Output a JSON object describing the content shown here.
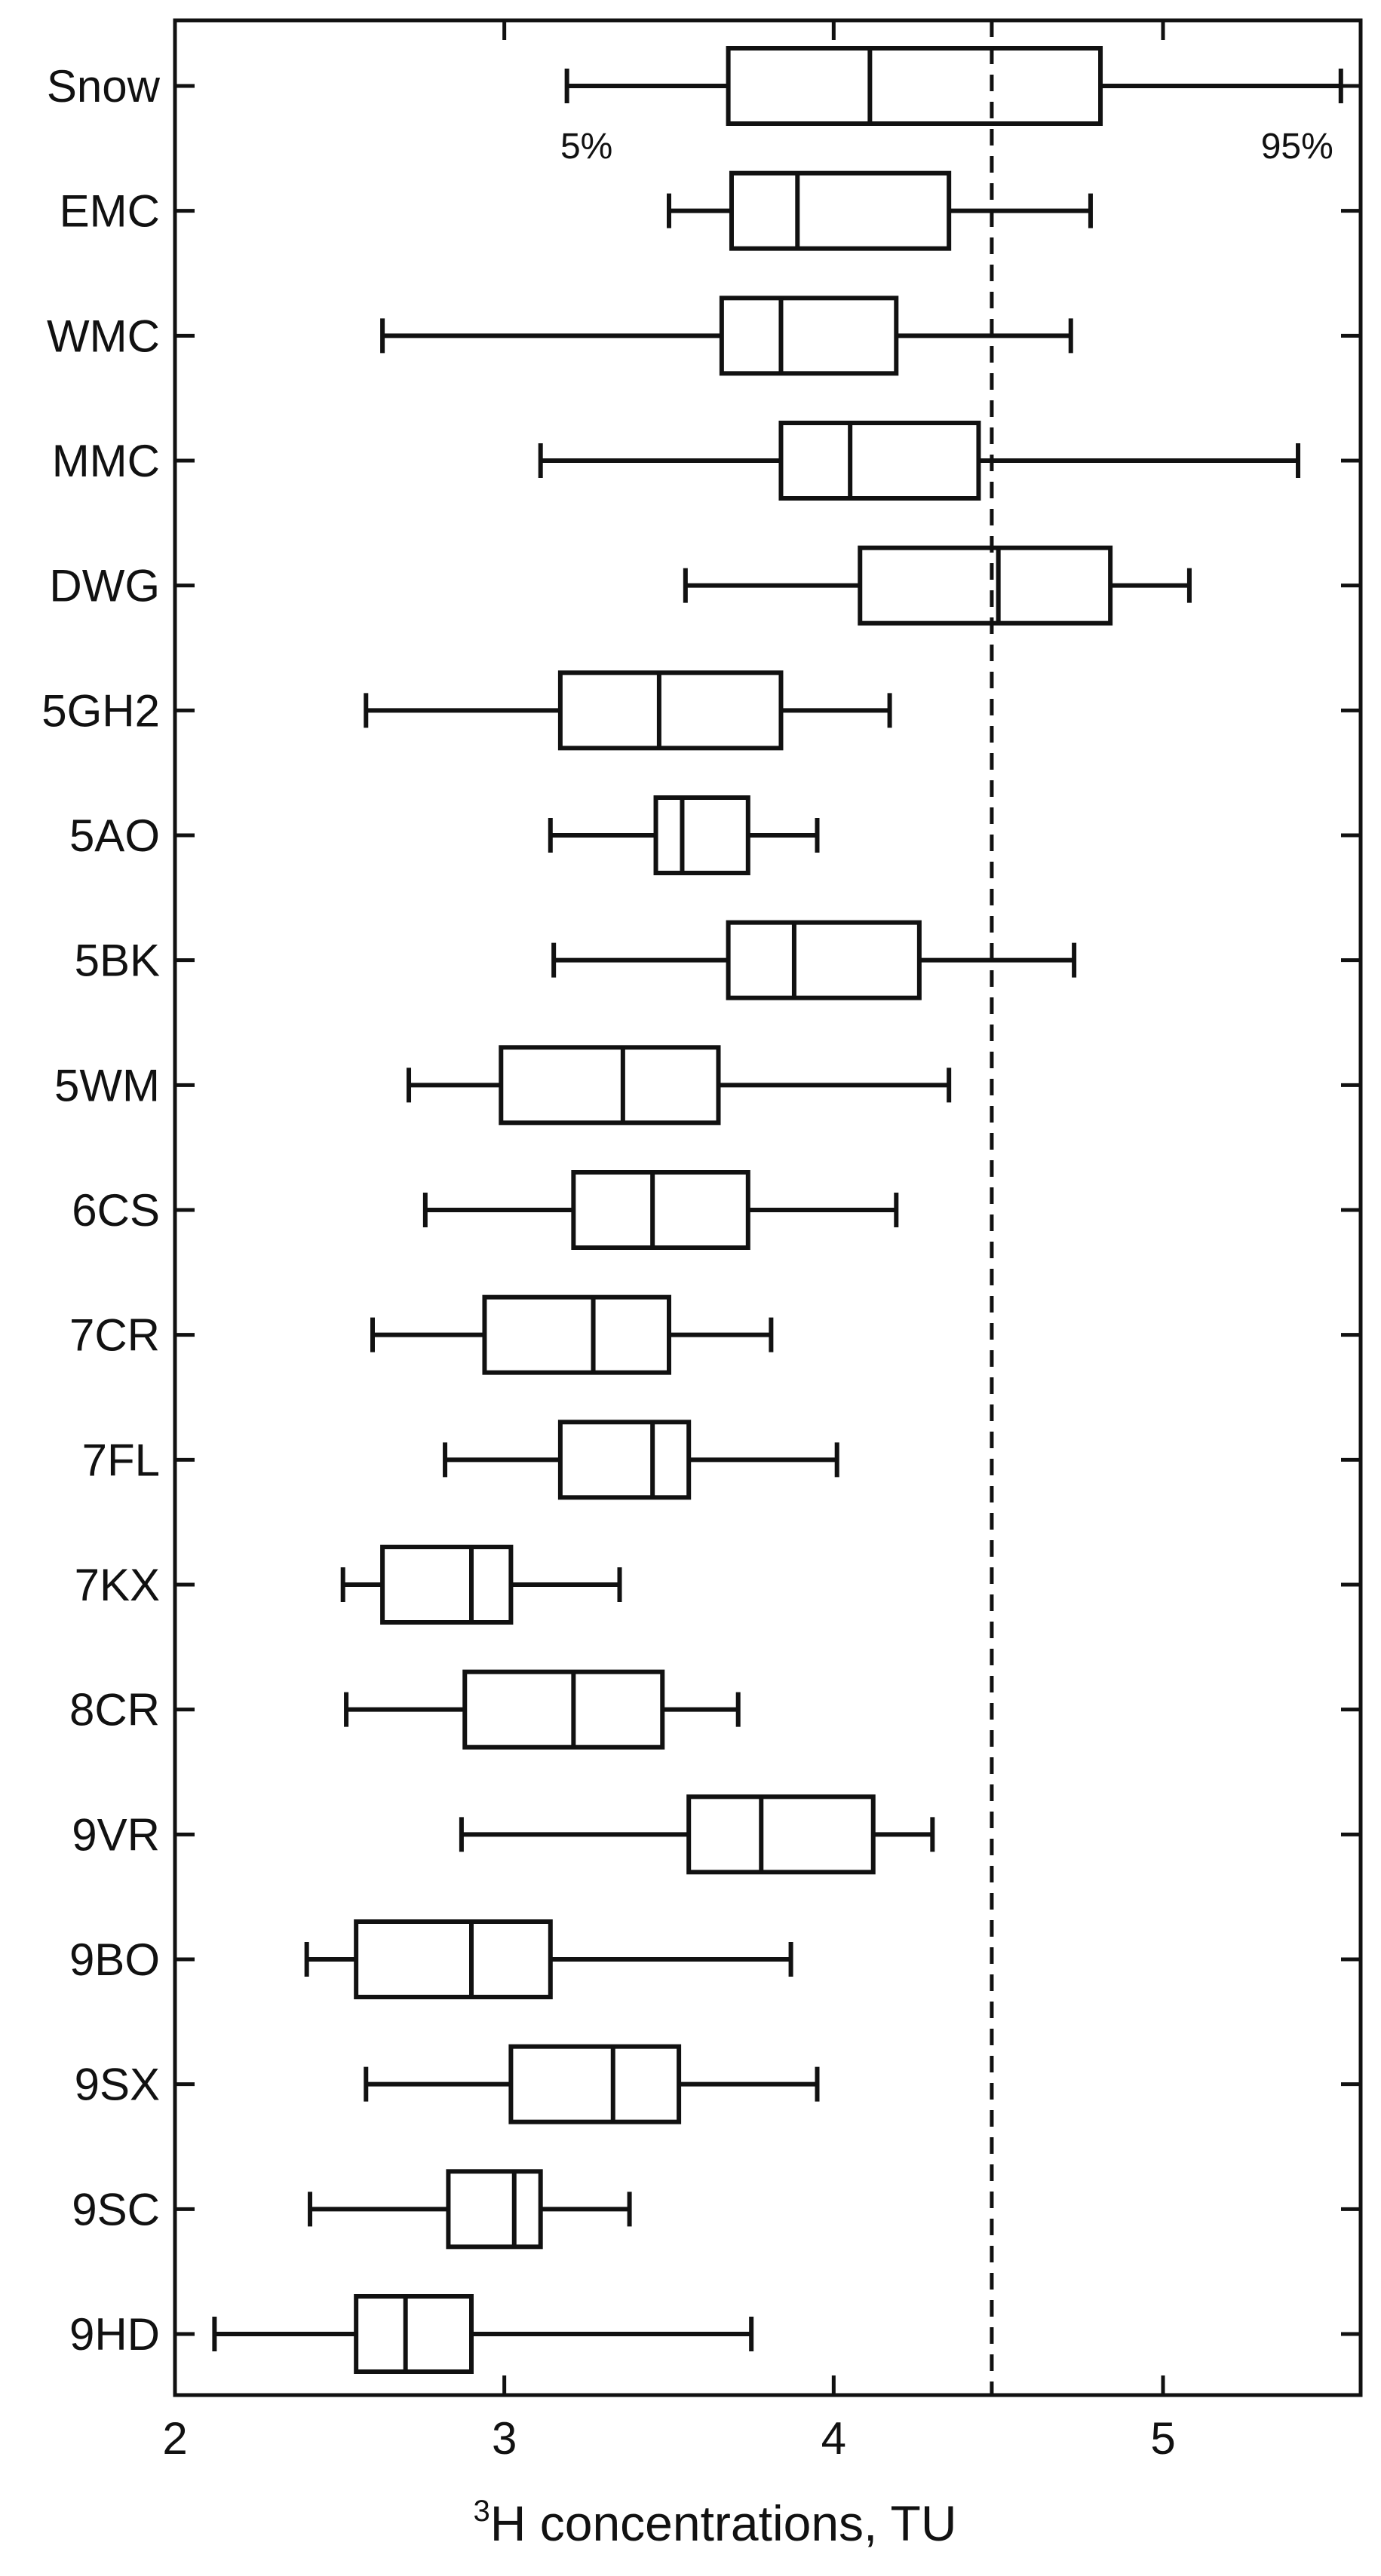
{
  "chart_data": {
    "type": "boxplot",
    "orientation": "horizontal",
    "xlabel_superscript": "3",
    "xlabel_main": "H concentrations, TU",
    "xlim": [
      2,
      5.6
    ],
    "xticks": [
      2,
      3,
      4,
      5
    ],
    "grid": false,
    "reference_line": {
      "x": 4.48,
      "style": "dashed"
    },
    "annotations": [
      {
        "category": "Snow",
        "text": "5%",
        "refers_to": "low whisker"
      },
      {
        "category": "Snow",
        "text": "95%",
        "refers_to": "high whisker"
      }
    ],
    "series": [
      {
        "name": "Snow",
        "p5": 3.19,
        "q1": 3.68,
        "median": 4.11,
        "q3": 4.81,
        "p95": 5.54
      },
      {
        "name": "EMC",
        "p5": 3.5,
        "q1": 3.69,
        "median": 3.89,
        "q3": 4.35,
        "p95": 4.78
      },
      {
        "name": "WMC",
        "p5": 2.63,
        "q1": 3.66,
        "median": 3.84,
        "q3": 4.19,
        "p95": 4.72
      },
      {
        "name": "MMC",
        "p5": 3.11,
        "q1": 3.84,
        "median": 4.05,
        "q3": 4.44,
        "p95": 5.41
      },
      {
        "name": "DWG",
        "p5": 3.55,
        "q1": 4.08,
        "median": 4.5,
        "q3": 4.84,
        "p95": 5.08
      },
      {
        "name": "5GH2",
        "p5": 2.58,
        "q1": 3.17,
        "median": 3.47,
        "q3": 3.84,
        "p95": 4.17
      },
      {
        "name": "5AO",
        "p5": 3.14,
        "q1": 3.46,
        "median": 3.54,
        "q3": 3.74,
        "p95": 3.95
      },
      {
        "name": "5BK",
        "p5": 3.15,
        "q1": 3.68,
        "median": 3.88,
        "q3": 4.26,
        "p95": 4.73
      },
      {
        "name": "5WM",
        "p5": 2.71,
        "q1": 2.99,
        "median": 3.36,
        "q3": 3.65,
        "p95": 4.35
      },
      {
        "name": "6CS",
        "p5": 2.76,
        "q1": 3.21,
        "median": 3.45,
        "q3": 3.74,
        "p95": 4.19
      },
      {
        "name": "7CR",
        "p5": 2.6,
        "q1": 2.94,
        "median": 3.27,
        "q3": 3.5,
        "p95": 3.81
      },
      {
        "name": "7FL",
        "p5": 2.82,
        "q1": 3.17,
        "median": 3.45,
        "q3": 3.56,
        "p95": 4.01
      },
      {
        "name": "7KX",
        "p5": 2.51,
        "q1": 2.63,
        "median": 2.9,
        "q3": 3.02,
        "p95": 3.35
      },
      {
        "name": "8CR",
        "p5": 2.52,
        "q1": 2.88,
        "median": 3.21,
        "q3": 3.48,
        "p95": 3.71
      },
      {
        "name": "9VR",
        "p5": 2.87,
        "q1": 3.56,
        "median": 3.78,
        "q3": 4.12,
        "p95": 4.3
      },
      {
        "name": "9BO",
        "p5": 2.4,
        "q1": 2.55,
        "median": 2.9,
        "q3": 3.14,
        "p95": 3.87
      },
      {
        "name": "9SX",
        "p5": 2.58,
        "q1": 3.02,
        "median": 3.33,
        "q3": 3.53,
        "p95": 3.95
      },
      {
        "name": "9SC",
        "p5": 2.41,
        "q1": 2.83,
        "median": 3.03,
        "q3": 3.11,
        "p95": 3.38
      },
      {
        "name": "9HD",
        "p5": 2.12,
        "q1": 2.55,
        "median": 2.7,
        "q3": 2.9,
        "p95": 3.75
      }
    ]
  }
}
